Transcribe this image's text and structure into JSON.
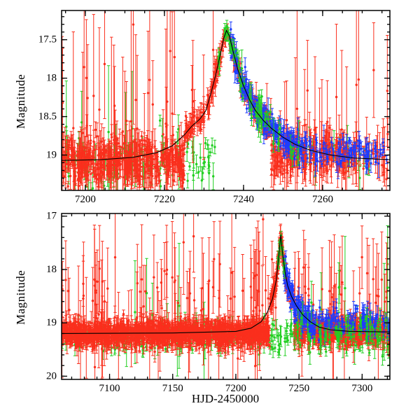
{
  "figure": {
    "background": "#ffffff",
    "axis_color": "#000000"
  },
  "series_colors": {
    "red": "#fa2f1d",
    "green": "#22cf22",
    "blue": "#1e3cff",
    "model": "#000000"
  },
  "labels": {
    "ylabel_top": "Magnitude",
    "ylabel_bottom": "Magnitude",
    "xlabel": "HJD-2450000"
  },
  "chart_data": [
    {
      "type": "scatter",
      "title": "",
      "description": "Zoomed light curve around microlensing peak",
      "xlabel": "",
      "ylabel": "Magnitude",
      "xlim": [
        7194,
        7277
      ],
      "ylim": [
        17.12,
        19.46
      ],
      "xticks": [
        7200,
        7220,
        7240,
        7260
      ],
      "yticks": [
        17.5,
        18,
        18.5,
        19
      ],
      "xminor": 5,
      "yminor": 0.1,
      "model_curve": [
        [
          7194,
          19.07
        ],
        [
          7204,
          19.06
        ],
        [
          7212,
          19.03
        ],
        [
          7218,
          18.97
        ],
        [
          7222,
          18.88
        ],
        [
          7225,
          18.74
        ],
        [
          7227,
          18.62
        ],
        [
          7229,
          18.53
        ],
        [
          7230.5,
          18.42
        ],
        [
          7232,
          18.15
        ],
        [
          7233,
          17.95
        ],
        [
          7234,
          17.72
        ],
        [
          7235,
          17.48
        ],
        [
          7235.7,
          17.38
        ],
        [
          7236.4,
          17.45
        ],
        [
          7237.5,
          17.68
        ],
        [
          7238.5,
          17.88
        ],
        [
          7240,
          18.1
        ],
        [
          7241.5,
          18.28
        ],
        [
          7243,
          18.42
        ],
        [
          7245,
          18.55
        ],
        [
          7247,
          18.65
        ],
        [
          7250,
          18.77
        ],
        [
          7253,
          18.86
        ],
        [
          7257,
          18.94
        ],
        [
          7262,
          19.0
        ],
        [
          7268,
          19.04
        ],
        [
          7277,
          19.06
        ]
      ],
      "clusters": [
        {
          "s": "green",
          "x0": 7195,
          "x1": 7233,
          "n": 130,
          "mode": "flat",
          "mag": 19.08,
          "sig": 0.14,
          "err": 0.16,
          "ofrac": 0.06,
          "omag": 18.55,
          "osig": 0.18
        },
        {
          "s": "green",
          "x0": 7254,
          "x1": 7272,
          "n": 28,
          "mode": "flat",
          "mag": 19.0,
          "sig": 0.12,
          "err": 0.16
        },
        {
          "s": "red",
          "x0": 7194,
          "x1": 7225,
          "n": 430,
          "mode": "flat",
          "mag": 19.07,
          "sig": 0.13,
          "err": 0.2,
          "ofrac": 0.1,
          "omag": 18.35,
          "osig": 0.45
        },
        {
          "s": "red",
          "x0": 7225,
          "x1": 7247,
          "n": 280,
          "mode": "model",
          "sig": 0.07,
          "err": 0.11,
          "ofrac": 0.02,
          "omag": 18.3,
          "osig": 0.3
        },
        {
          "s": "red",
          "x0": 7247,
          "x1": 7266,
          "n": 230,
          "mode": "flat",
          "mag": 19.0,
          "sig": 0.12,
          "err": 0.2,
          "ofrac": 0.06,
          "omag": 18.5,
          "osig": 0.4
        },
        {
          "s": "red",
          "x0": 7266,
          "x1": 7277,
          "n": 45,
          "mode": "flat",
          "mag": 19.0,
          "sig": 0.12,
          "err": 0.22,
          "ofrac": 0.1,
          "omag": 18.2,
          "osig": 0.55
        },
        {
          "s": "blue",
          "x0": 7236.5,
          "x1": 7246,
          "n": 130,
          "mode": "model",
          "sig": 0.09,
          "err": 0.1
        },
        {
          "s": "blue",
          "x0": 7246,
          "x1": 7256,
          "n": 110,
          "mode": "model",
          "sig": 0.1,
          "err": 0.1
        },
        {
          "s": "blue",
          "x0": 7256,
          "x1": 7277,
          "n": 90,
          "mode": "flat",
          "mag": 18.95,
          "sig": 0.1,
          "err": 0.11
        },
        {
          "s": "green",
          "x0": 7238,
          "x1": 7254,
          "n": 45,
          "mode": "model",
          "sig": 0.12,
          "err": 0.15,
          "ofrac": 0.05,
          "omag": 19.3,
          "osig": 0.3
        },
        {
          "s": "green",
          "x0": 7233.5,
          "x1": 7238,
          "n": 26,
          "mode": "model",
          "sig": 0.05,
          "err": 0.09
        }
      ]
    },
    {
      "type": "scatter",
      "title": "",
      "description": "Full-season light curve",
      "xlabel": "HJD-2450000",
      "ylabel": "Magnitude",
      "xlim": [
        7062,
        7322
      ],
      "ylim": [
        16.95,
        20.06
      ],
      "xticks": [
        7100,
        7150,
        7200,
        7250,
        7300
      ],
      "yticks": [
        17,
        18,
        19,
        20
      ],
      "xminor": 10,
      "yminor": 0.2,
      "model_curve": [
        [
          7062,
          19.2
        ],
        [
          7150,
          19.19
        ],
        [
          7200,
          19.16
        ],
        [
          7212,
          19.1
        ],
        [
          7220,
          18.98
        ],
        [
          7225,
          18.8
        ],
        [
          7229,
          18.55
        ],
        [
          7232,
          18.2
        ],
        [
          7234,
          17.75
        ],
        [
          7235.6,
          17.35
        ],
        [
          7237,
          17.7
        ],
        [
          7239,
          18.05
        ],
        [
          7241,
          18.3
        ],
        [
          7244,
          18.5
        ],
        [
          7248,
          18.68
        ],
        [
          7253,
          18.85
        ],
        [
          7259,
          18.98
        ],
        [
          7266,
          19.08
        ],
        [
          7275,
          19.13
        ],
        [
          7290,
          19.16
        ],
        [
          7322,
          19.17
        ]
      ],
      "clusters": [
        {
          "s": "green",
          "x0": 7062,
          "x1": 7322,
          "n": 320,
          "mode": "flat",
          "mag": 19.25,
          "sig": 0.13,
          "err": 0.16,
          "ofrac": 0.05,
          "omag": 18.7,
          "osig": 0.3
        },
        {
          "s": "red",
          "x0": 7062,
          "x1": 7227,
          "n": 1500,
          "mode": "flat",
          "mag": 19.2,
          "sig": 0.1,
          "err": 0.15,
          "ofrac": 0.07,
          "omag": 18.6,
          "osig": 0.5
        },
        {
          "s": "red",
          "x0": 7227,
          "x1": 7246,
          "n": 220,
          "mode": "model",
          "sig": 0.08,
          "err": 0.11,
          "ofrac": 0.02,
          "omag": 18.4,
          "osig": 0.3
        },
        {
          "s": "red",
          "x0": 7246,
          "x1": 7322,
          "n": 600,
          "mode": "flat",
          "mag": 19.15,
          "sig": 0.11,
          "err": 0.15,
          "ofrac": 0.06,
          "omag": 18.6,
          "osig": 0.4
        },
        {
          "s": "blue",
          "x0": 7238,
          "x1": 7263,
          "n": 160,
          "mode": "model",
          "sig": 0.13,
          "err": 0.12
        },
        {
          "s": "blue",
          "x0": 7263,
          "x1": 7322,
          "n": 130,
          "mode": "flat",
          "mag": 19.0,
          "sig": 0.13,
          "err": 0.12
        },
        {
          "s": "green",
          "x0": 7240,
          "x1": 7322,
          "n": 90,
          "mode": "flat",
          "mag": 19.2,
          "sig": 0.13,
          "err": 0.16,
          "ofrac": 0.04,
          "omag": 18.6,
          "osig": 0.25
        },
        {
          "s": "green",
          "x0": 7281,
          "x1": 7283,
          "n": 2,
          "mode": "flat",
          "mag": 18.3,
          "sig": 0.3,
          "err": 0.9
        },
        {
          "s": "green",
          "x0": 7232.5,
          "x1": 7239,
          "n": 22,
          "mode": "model",
          "sig": 0.06,
          "err": 0.1
        }
      ]
    }
  ]
}
